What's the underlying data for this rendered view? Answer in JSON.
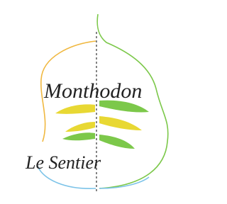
{
  "logo": {
    "title": "Monthodon",
    "subtitle": "Le Sentier"
  }
}
